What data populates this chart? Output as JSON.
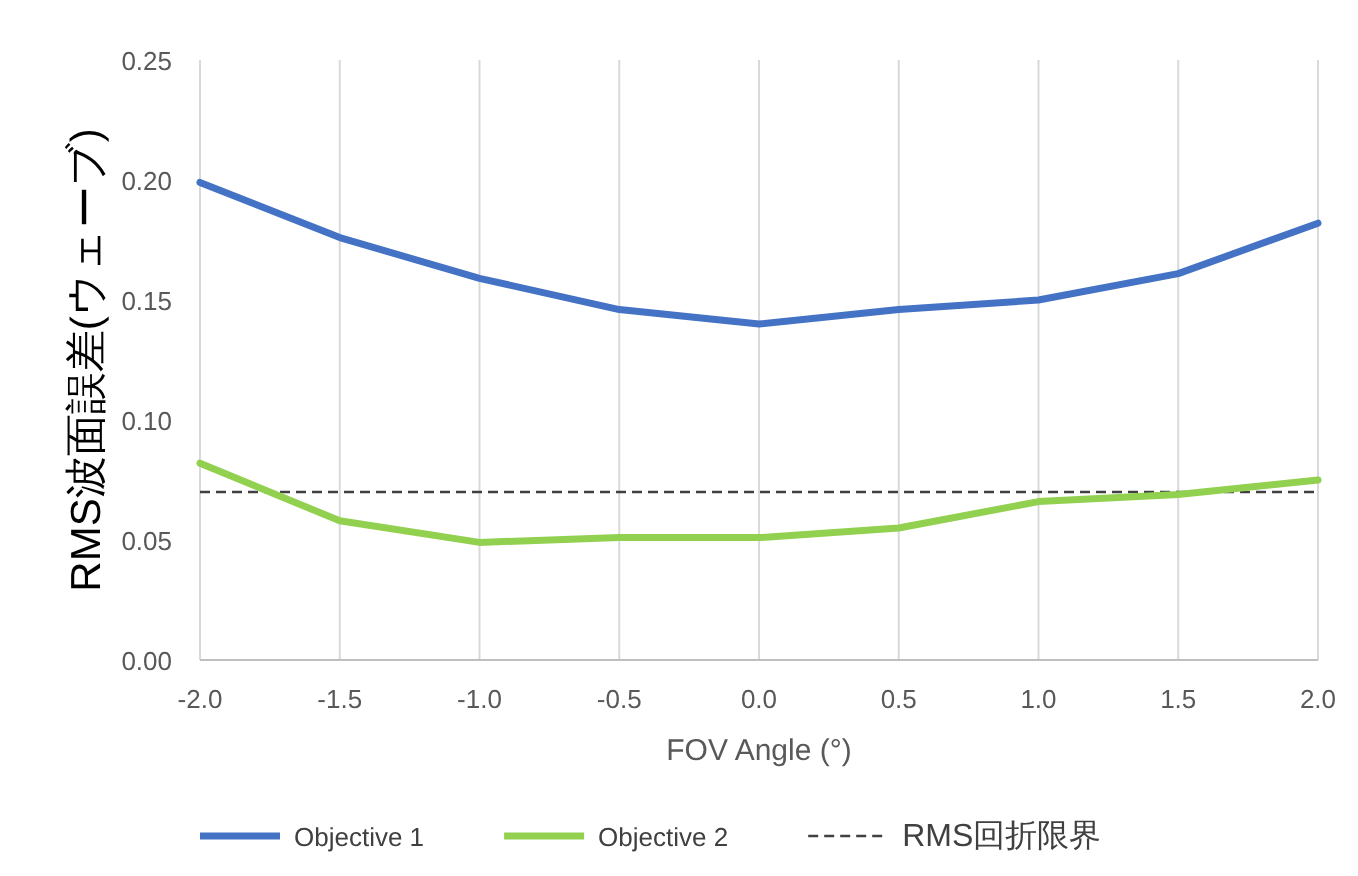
{
  "chart_data": {
    "type": "line",
    "xlabel": "FOV Angle (°)",
    "ylabel": "RMS波面誤差(ウェーブ)",
    "x": [
      -2.0,
      -1.5,
      -1.0,
      -0.5,
      0.0,
      0.5,
      1.0,
      1.5,
      2.0
    ],
    "series": [
      {
        "name": "Objective 1",
        "color": "#4472c4",
        "values": [
          0.199,
          0.176,
          0.159,
          0.146,
          0.14,
          0.146,
          0.15,
          0.161,
          0.182
        ]
      },
      {
        "name": "Objective 2",
        "color": "#92d050",
        "values": [
          0.082,
          0.058,
          0.049,
          0.051,
          0.051,
          0.055,
          0.066,
          0.069,
          0.075
        ]
      }
    ],
    "ref_lines": [
      {
        "axis": "y",
        "value": 0.07,
        "label": "RMS回折限界",
        "color": "#404040",
        "line_style": "dashed"
      }
    ],
    "xlim": [
      -2.0,
      2.0
    ],
    "ylim": [
      0,
      0.25
    ],
    "xticks": [
      {
        "value": -2.0,
        "label": "-2.0"
      },
      {
        "value": -1.5,
        "label": "-1.5"
      },
      {
        "value": -1.0,
        "label": "-1.0"
      },
      {
        "value": -0.5,
        "label": "-0.5"
      },
      {
        "value": 0.0,
        "label": "0.0"
      },
      {
        "value": 0.5,
        "label": "0.5"
      },
      {
        "value": 1.0,
        "label": "1.0"
      },
      {
        "value": 1.5,
        "label": "1.5"
      },
      {
        "value": 2.0,
        "label": "2.0"
      }
    ],
    "yticks": [
      {
        "value": 0,
        "label": "0.00"
      },
      {
        "value": 0.05,
        "label": "0.05"
      },
      {
        "value": 0.1,
        "label": "0.10"
      },
      {
        "value": 0.15,
        "label": "0.15"
      },
      {
        "value": 0.2,
        "label": "0.20"
      },
      {
        "value": 0.25,
        "label": "0.25"
      }
    ],
    "grid": "x",
    "legend": "bottom",
    "line_style": "solid",
    "marker": "none"
  }
}
